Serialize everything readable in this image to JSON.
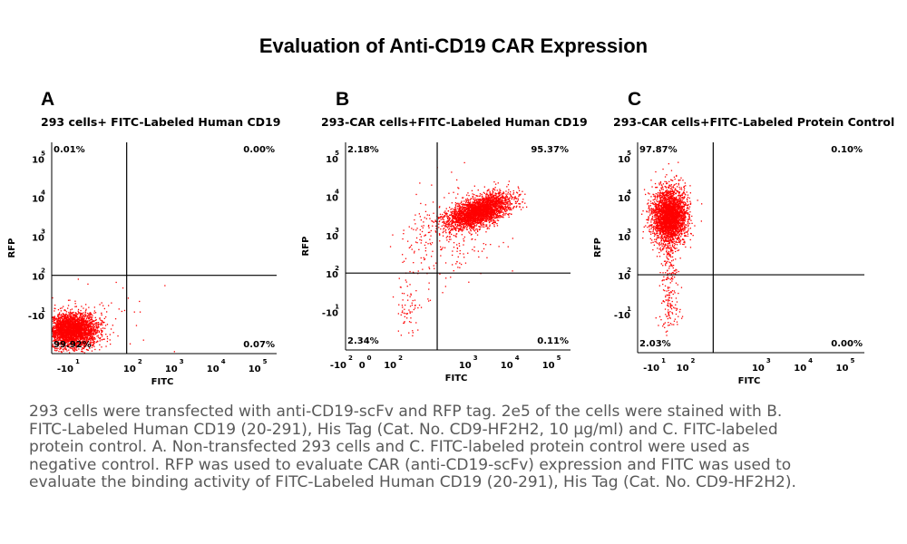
{
  "title": "Evaluation of Anti-CD19 CAR Expression",
  "chart_data": [
    {
      "type": "scatter",
      "panel": "A",
      "subtitle": "293 cells+ FITC-Labeled Human CD19",
      "xlabel": "FITC",
      "ylabel": "RFP",
      "x_ticks": [
        {
          "base": "-10",
          "exp": "1"
        },
        {
          "base": "10",
          "exp": "2"
        },
        {
          "base": "10",
          "exp": "3"
        },
        {
          "base": "10",
          "exp": "4"
        },
        {
          "base": "10",
          "exp": "5"
        }
      ],
      "y_ticks": [
        {
          "base": "-10",
          "exp": "1"
        },
        {
          "base": "10",
          "exp": "2"
        },
        {
          "base": "10",
          "exp": "3"
        },
        {
          "base": "10",
          "exp": "4"
        },
        {
          "base": "10",
          "exp": "5"
        }
      ],
      "quadrants": {
        "upper_left": "0.01%",
        "upper_right": "0.00%",
        "lower_left": "99.92%",
        "lower_right": "0.07%"
      },
      "gate": {
        "fitc": 1.8,
        "rfp": 2.0
      },
      "point_color": "#ff0000",
      "populations": [
        {
          "share": 0.985,
          "fitc": 0.5,
          "rfp": 0.6,
          "sd_fitc": 0.3,
          "sd_rfp": 0.22
        },
        {
          "share": 0.015,
          "fitc": 1.0,
          "rfp": 1.0,
          "sd_fitc": 0.8,
          "sd_rfp": 0.6
        }
      ]
    },
    {
      "type": "scatter",
      "panel": "B",
      "subtitle": "293-CAR cells+FITC-Labeled Human CD19",
      "xlabel": "FITC",
      "ylabel": "RFP",
      "x_ticks": [
        {
          "base": "-10",
          "exp": "2"
        },
        {
          "base": "0",
          "exp": "0"
        },
        {
          "base": "10",
          "exp": "2"
        },
        {
          "base": "10",
          "exp": "3"
        },
        {
          "base": "10",
          "exp": "4"
        },
        {
          "base": "10",
          "exp": "5"
        }
      ],
      "y_ticks": [
        {
          "base": "-10",
          "exp": "1"
        },
        {
          "base": "10",
          "exp": "2"
        },
        {
          "base": "10",
          "exp": "3"
        },
        {
          "base": "10",
          "exp": "4"
        },
        {
          "base": "10",
          "exp": "5"
        }
      ],
      "quadrants": {
        "upper_left": "2.18%",
        "upper_right": "95.37%",
        "lower_left": "2.34%",
        "lower_right": "0.11%"
      },
      "gate": {
        "fitc": 2.2,
        "rfp": 2.0
      },
      "point_color": "#ff0000",
      "populations": [
        {
          "share": 0.9,
          "fitc": 3.2,
          "rfp": 3.6,
          "sd_fitc": 0.38,
          "sd_rfp": 0.22,
          "corr": 0.55
        },
        {
          "share": 0.06,
          "fitc": 2.5,
          "rfp": 3.0,
          "sd_fitc": 0.6,
          "sd_rfp": 0.6
        },
        {
          "share": 0.02,
          "fitc": 1.5,
          "rfp": 1.1,
          "sd_fitc": 0.18,
          "sd_rfp": 0.35
        },
        {
          "share": 0.02,
          "fitc": 1.8,
          "rfp": 2.6,
          "sd_fitc": 0.3,
          "sd_rfp": 0.6
        }
      ]
    },
    {
      "type": "scatter",
      "panel": "C",
      "subtitle": "293-CAR cells+FITC-Labeled Protein Control",
      "xlabel": "FITC",
      "ylabel": "RFP",
      "x_ticks": [
        {
          "base": "-10",
          "exp": "1"
        },
        {
          "base": "10",
          "exp": "2"
        },
        {
          "base": "10",
          "exp": "3"
        },
        {
          "base": "10",
          "exp": "4"
        },
        {
          "base": "10",
          "exp": "5"
        }
      ],
      "y_ticks": [
        {
          "base": "-10",
          "exp": "1"
        },
        {
          "base": "10",
          "exp": "2"
        },
        {
          "base": "10",
          "exp": "3"
        },
        {
          "base": "10",
          "exp": "4"
        },
        {
          "base": "10",
          "exp": "5"
        }
      ],
      "quadrants": {
        "upper_left": "97.87%",
        "upper_right": "0.10%",
        "lower_left": "2.03%",
        "lower_right": "0.00%"
      },
      "gate": {
        "fitc": 1.8,
        "rfp": 2.0
      },
      "point_color": "#ff0000",
      "populations": [
        {
          "share": 0.92,
          "fitc": 0.75,
          "rfp": 3.5,
          "sd_fitc": 0.2,
          "sd_rfp": 0.35
        },
        {
          "share": 0.06,
          "fitc": 0.75,
          "rfp": 2.2,
          "sd_fitc": 0.12,
          "sd_rfp": 0.7
        },
        {
          "share": 0.02,
          "fitc": 0.75,
          "rfp": 1.0,
          "sd_fitc": 0.12,
          "sd_rfp": 0.25
        }
      ]
    }
  ],
  "caption": [
    "293 cells were transfected with anti-CD19-scFv and RFP tag. 2e5 of the cells were stained with B.",
    "FITC-Labeled Human CD19 (20-291), His Tag (Cat. No. CD9-HF2H2, 10 μg/ml) and C. FITC-labeled",
    "protein control. A. Non-transfected 293 cells and C. FITC-labeled protein control were used as",
    "negative control. RFP was used to evaluate CAR (anti-CD19-scFv) expression and FITC was used to",
    "evaluate the binding activity of FITC-Labeled Human CD19 (20-291), His Tag (Cat. No. CD9-HF2H2)."
  ]
}
